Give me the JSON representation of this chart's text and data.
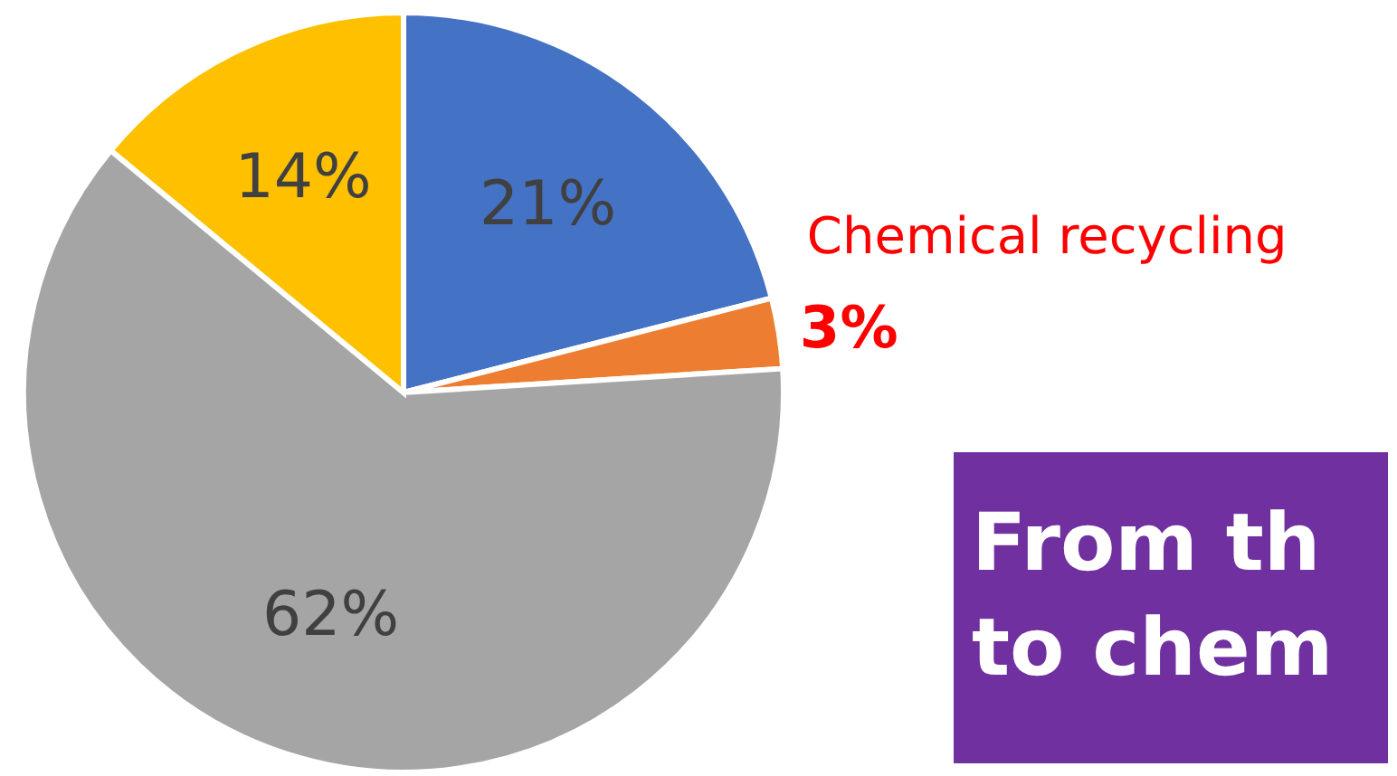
{
  "chart_data": {
    "type": "pie",
    "categories": [
      null,
      "Chemical recycling",
      null,
      null
    ],
    "values": [
      21,
      3,
      62,
      14
    ],
    "colors": [
      "#4472c4",
      "#ed7d31",
      "#a5a5a5",
      "#ffc000"
    ],
    "value_labels": [
      "21%",
      "3%",
      "62%",
      "14%"
    ],
    "annotations": [
      "From th",
      "to chem"
    ]
  }
}
